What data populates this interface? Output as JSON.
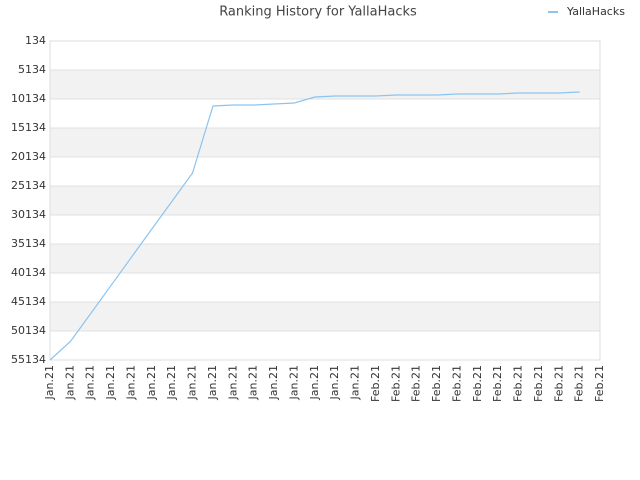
{
  "chart_data": {
    "type": "line",
    "title": "Ranking History for YallaHacks",
    "categories": [
      "Jan.21",
      "Jan.21",
      "Jan.21",
      "Jan.21",
      "Jan.21",
      "Jan.21",
      "Jan.21",
      "Jan.21",
      "Jan.21",
      "Jan.21",
      "Jan.21",
      "Jan.21",
      "Jan.21",
      "Jan.21",
      "Jan.21",
      "Jan.21",
      "Feb.21",
      "Feb.21",
      "Feb.21",
      "Feb.21",
      "Feb.21",
      "Feb.21",
      "Feb.21",
      "Feb.21",
      "Feb.21",
      "Feb.21",
      "Feb.21",
      "Feb.21"
    ],
    "series": [
      {
        "name": "YallaHacks",
        "color": "#8cc4f0",
        "values": [
          55134,
          51945,
          47113,
          42259,
          37404,
          32549,
          27717,
          22862,
          11341,
          11169,
          11169,
          10996,
          10824,
          9789,
          9617,
          9617,
          9617,
          9444,
          9444,
          9444,
          9272,
          9272,
          9272,
          9100,
          9100,
          9100,
          8927,
          null
        ]
      }
    ],
    "ylim": [
      55134,
      134
    ],
    "yticks": [
      134,
      5134,
      10134,
      15134,
      20134,
      25134,
      30134,
      35134,
      40134,
      45134,
      50134,
      55134
    ],
    "grid": true,
    "legend": "top-right"
  }
}
